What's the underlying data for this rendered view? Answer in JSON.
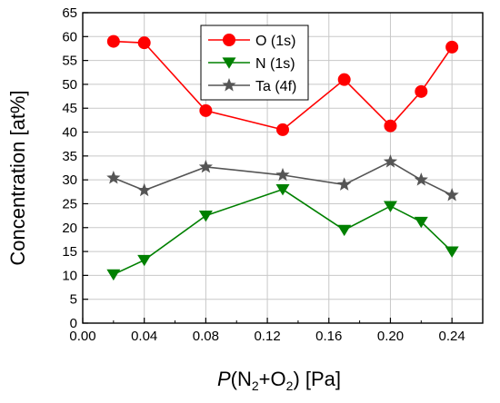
{
  "chart_data": {
    "type": "line",
    "xlabel": {
      "italic": "P",
      "rest": "(N",
      "sub1": "2",
      "plus": "+O",
      "sub2": "2",
      "unit": ") [Pa]"
    },
    "ylabel": "Concentration [at%]",
    "xlim": [
      0.0,
      0.26
    ],
    "ylim": [
      0,
      65
    ],
    "xticks": [
      "0.00",
      "0.04",
      "0.08",
      "0.12",
      "0.16",
      "0.20",
      "0.24"
    ],
    "yticks": [
      "0",
      "5",
      "10",
      "15",
      "20",
      "25",
      "30",
      "35",
      "40",
      "45",
      "50",
      "55",
      "60",
      "65"
    ],
    "grid": true,
    "legend_position": "top-center",
    "series": [
      {
        "name": "O (1s)",
        "color": "#ff0000",
        "marker": "circle",
        "x": [
          0.02,
          0.04,
          0.08,
          0.13,
          0.17,
          0.2,
          0.22,
          0.24
        ],
        "y": [
          59.0,
          58.7,
          44.5,
          40.5,
          51.0,
          41.3,
          48.5,
          57.8
        ]
      },
      {
        "name": "N (1s)",
        "color": "#008000",
        "marker": "triangle-down",
        "x": [
          0.02,
          0.04,
          0.08,
          0.13,
          0.17,
          0.2,
          0.22,
          0.24
        ],
        "y": [
          10.2,
          13.2,
          22.5,
          28.0,
          19.5,
          24.5,
          21.2,
          15.0
        ]
      },
      {
        "name": "Ta (4f)",
        "color": "#555555",
        "marker": "star",
        "x": [
          0.02,
          0.04,
          0.08,
          0.13,
          0.17,
          0.2,
          0.22,
          0.24
        ],
        "y": [
          30.4,
          27.8,
          32.7,
          31.0,
          29.0,
          33.8,
          30.0,
          26.8
        ]
      }
    ]
  }
}
